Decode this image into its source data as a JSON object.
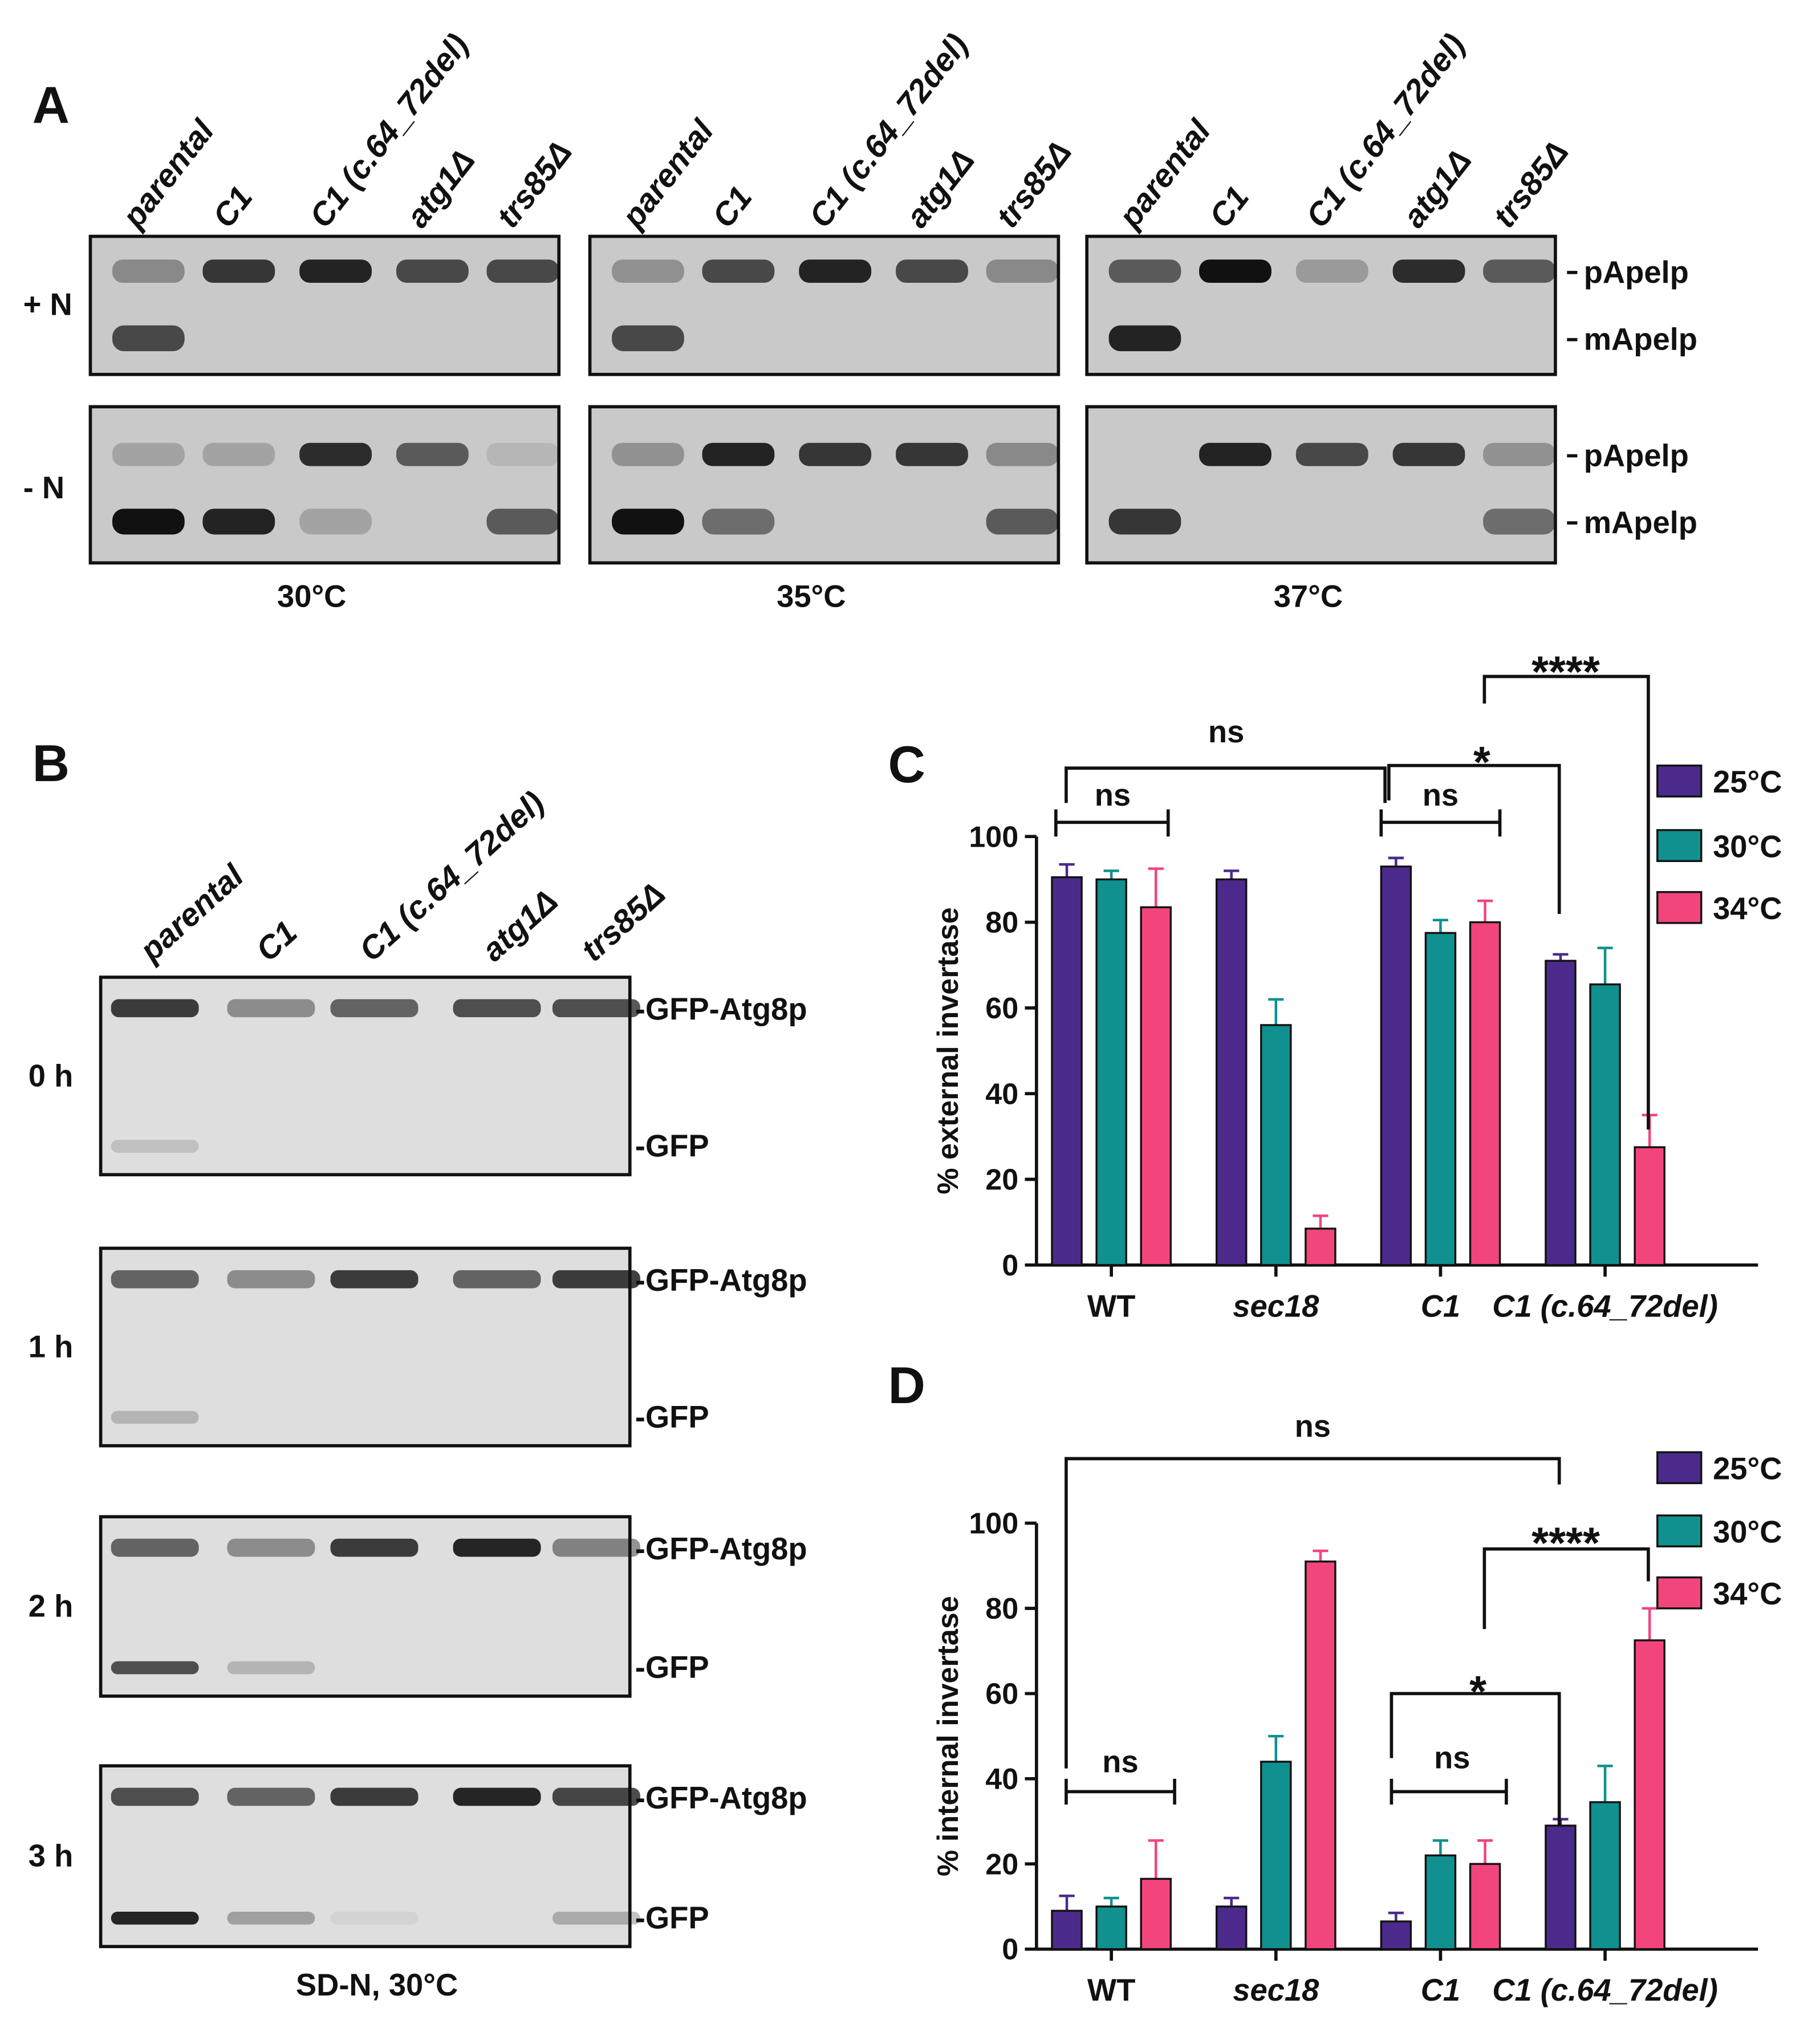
{
  "panel_a": {
    "label": "A",
    "lanes": [
      "parental",
      "C1",
      "C1 (c.64_72del)",
      "atg1Δ",
      "trs85Δ"
    ],
    "rows": [
      "+ N",
      "- N"
    ],
    "temperatures": [
      "30°C",
      "35°C",
      "37°C"
    ],
    "bands": [
      "pApelp",
      "mApelp"
    ]
  },
  "panel_b": {
    "label": "B",
    "lanes": [
      "parental",
      "C1",
      "C1 (c.64_72del)",
      "atg1Δ",
      "trs85Δ"
    ],
    "times": [
      "0 h",
      "1 h",
      "2 h",
      "3 h"
    ],
    "bands": [
      "-GFP-Atg8p",
      "-GFP"
    ],
    "condition": "SD-N, 30°C"
  },
  "chart_data": [
    {
      "type": "bar",
      "panel": "C",
      "y_label": "% external invertase",
      "categories": [
        "WT",
        "sec18",
        "C1",
        "C1 (c.64_72del)"
      ],
      "series": [
        {
          "name": "25°C",
          "color": "#4b2a8c",
          "values": [
            90.5,
            90,
            93,
            71
          ],
          "errors": [
            3,
            2,
            2,
            1.5
          ]
        },
        {
          "name": "30°C",
          "color": "#10908e",
          "values": [
            90,
            56,
            77.5,
            65.5
          ],
          "errors": [
            2,
            6,
            3,
            8.5
          ]
        },
        {
          "name": "34°C",
          "color": "#f2457c",
          "values": [
            83.5,
            8.5,
            80,
            27.5
          ],
          "errors": [
            9,
            3,
            5,
            7.5
          ]
        }
      ],
      "ylim": [
        0,
        100
      ],
      "yticks": [
        0,
        20,
        40,
        60,
        80,
        100
      ],
      "annotations": [
        "ns",
        "ns",
        "ns",
        "*",
        "****"
      ]
    },
    {
      "type": "bar",
      "panel": "D",
      "y_label": "% internal invertase",
      "categories": [
        "WT",
        "sec18",
        "C1",
        "C1 (c.64_72del)"
      ],
      "series": [
        {
          "name": "25°C",
          "color": "#4b2a8c",
          "values": [
            9,
            10,
            6.5,
            29
          ],
          "errors": [
            3.5,
            2,
            2,
            1.5
          ]
        },
        {
          "name": "30°C",
          "color": "#10908e",
          "values": [
            10,
            44,
            22,
            34.5
          ],
          "errors": [
            2,
            6,
            3.5,
            8.5
          ]
        },
        {
          "name": "34°C",
          "color": "#f2457c",
          "values": [
            16.5,
            91,
            20,
            72.5
          ],
          "errors": [
            9,
            2.5,
            5.5,
            7.5
          ]
        }
      ],
      "ylim": [
        0,
        100
      ],
      "yticks": [
        0,
        20,
        40,
        60,
        80,
        100
      ],
      "annotations": [
        "ns",
        "ns",
        "ns",
        "*",
        "****"
      ]
    }
  ]
}
